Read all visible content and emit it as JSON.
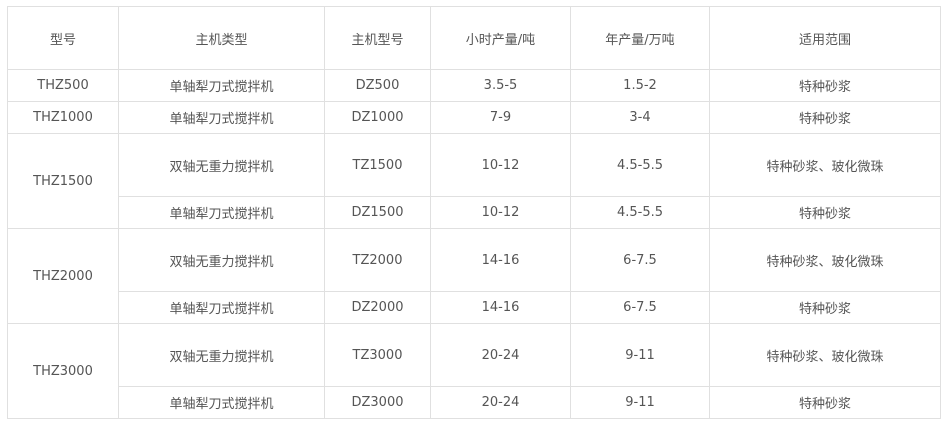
{
  "headers": [
    "型号",
    "主机类型",
    "主机型号",
    "小时产量/吨",
    "年产量/万吨",
    "适用范围"
  ],
  "groups": [
    {
      "model": "THZ500",
      "rows": [
        {
          "type": "单轴犁刀式搅拌机",
          "host_model": "DZ500",
          "hourly": "3.5-5",
          "yearly": "1.5-2",
          "scope": "特种砂浆"
        }
      ]
    },
    {
      "model": "THZ1000",
      "rows": [
        {
          "type": "单轴犁刀式搅拌机",
          "host_model": "DZ1000",
          "hourly": "7-9",
          "yearly": "3-4",
          "scope": "特种砂浆"
        }
      ]
    },
    {
      "model": "THZ1500",
      "rows": [
        {
          "type": "双轴无重力搅拌机",
          "host_model": "TZ1500",
          "hourly": "10-12",
          "yearly": "4.5-5.5",
          "scope": "特种砂浆、玻化微珠"
        },
        {
          "type": "单轴犁刀式搅拌机",
          "host_model": "DZ1500",
          "hourly": "10-12",
          "yearly": "4.5-5.5",
          "scope": "特种砂浆"
        }
      ]
    },
    {
      "model": "THZ2000",
      "rows": [
        {
          "type": "双轴无重力搅拌机",
          "host_model": "TZ2000",
          "hourly": "14-16",
          "yearly": "6-7.5",
          "scope": "特种砂浆、玻化微珠"
        },
        {
          "type": "单轴犁刀式搅拌机",
          "host_model": "DZ2000",
          "hourly": "14-16",
          "yearly": "6-7.5",
          "scope": "特种砂浆"
        }
      ]
    },
    {
      "model": "THZ3000",
      "rows": [
        {
          "type": "双轴无重力搅拌机",
          "host_model": "TZ3000",
          "hourly": "20-24",
          "yearly": "9-11",
          "scope": "特种砂浆、玻化微珠"
        },
        {
          "type": "单轴犁刀式搅拌机",
          "host_model": "DZ3000",
          "hourly": "20-24",
          "yearly": "9-11",
          "scope": "特种砂浆"
        }
      ]
    }
  ]
}
